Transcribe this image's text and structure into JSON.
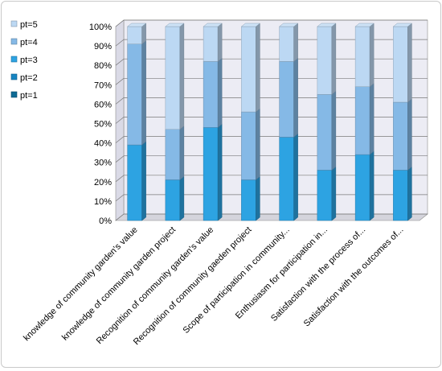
{
  "chart_data": {
    "type": "bar",
    "stacked": true,
    "percent": true,
    "categories": [
      "knowledge of community garden's value",
      "knowledge of community garden project",
      "Recognition of community garden's value",
      "Recognition of community gaeden project",
      "Scope of participation in community...",
      "Enthusiasm for participation in...",
      "Satisfaction with the process of...",
      "Satisfaction with the outcomes of..."
    ],
    "series": [
      {
        "name": "pt=1",
        "color": "#0d6a94",
        "values": [
          0,
          0,
          0,
          0,
          0,
          0,
          0,
          0
        ]
      },
      {
        "name": "pt=2",
        "color": "#1685c2",
        "values": [
          0,
          0,
          0,
          0,
          0,
          0,
          0,
          0
        ]
      },
      {
        "name": "pt=3",
        "color": "#2da3e2",
        "values": [
          39,
          21,
          48,
          21,
          43,
          26,
          34,
          26
        ]
      },
      {
        "name": "pt=4",
        "color": "#85b9e6",
        "values": [
          52,
          26,
          34,
          35,
          39,
          39,
          35,
          35
        ]
      },
      {
        "name": "pt=5",
        "color": "#bcd8f3",
        "values": [
          9,
          53,
          18,
          44,
          18,
          35,
          31,
          39
        ]
      }
    ],
    "yticks": [
      "0%",
      "10%",
      "20%",
      "30%",
      "40%",
      "50%",
      "60%",
      "70%",
      "80%",
      "90%",
      "100%"
    ],
    "ylim": [
      0,
      100
    ],
    "legend_position": "left",
    "grid": true
  }
}
